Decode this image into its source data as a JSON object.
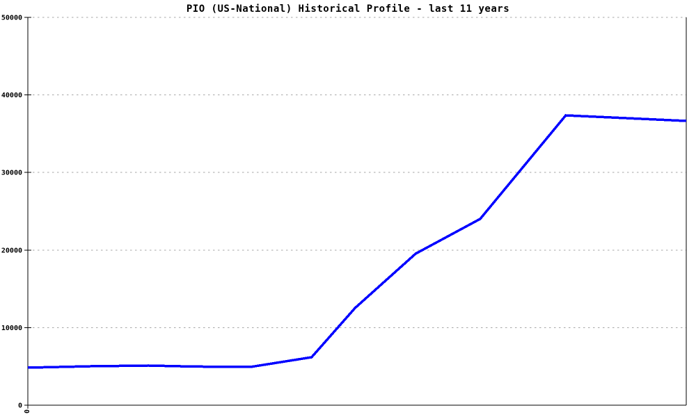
{
  "chart_data": {
    "type": "line",
    "title": "PIO (US-National) Historical Profile - last 11 years",
    "xlabel": "",
    "ylabel": "",
    "ylim": [
      0,
      50000
    ],
    "y_ticks": [
      0,
      10000,
      20000,
      30000,
      40000,
      50000
    ],
    "x_ticks": [
      {
        "xf": 0.0,
        "label": "0",
        "rotation_deg": 90
      }
    ],
    "grid": "horizontal-dotted",
    "legend": "none",
    "colors": {
      "line": "#0000ff",
      "grid": "#a6a6a6",
      "axis": "#000000",
      "background": "#ffffff",
      "text": "#000000"
    },
    "series": [
      {
        "name": "PIO (US-National)",
        "points": [
          {
            "xf": 0.0,
            "value": 4840
          },
          {
            "xf": 0.095,
            "value": 5020
          },
          {
            "xf": 0.183,
            "value": 5110
          },
          {
            "xf": 0.251,
            "value": 4980
          },
          {
            "xf": 0.338,
            "value": 4930
          },
          {
            "xf": 0.431,
            "value": 6180
          },
          {
            "xf": 0.497,
            "value": 12540
          },
          {
            "xf": 0.589,
            "value": 19530
          },
          {
            "xf": 0.687,
            "value": 24010
          },
          {
            "xf": 0.817,
            "value": 37370
          },
          {
            "xf": 0.909,
            "value": 37010
          },
          {
            "xf": 1.0,
            "value": 36650
          }
        ]
      }
    ]
  }
}
